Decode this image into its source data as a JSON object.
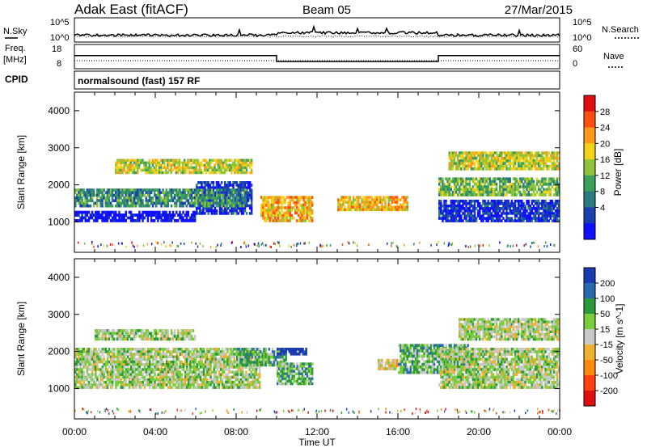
{
  "header": {
    "station": "Adak East (fitACF)",
    "beam": "Beam 05",
    "date": "27/Mar/2015"
  },
  "panels": {
    "nsky_label": "N.Sky",
    "nsearch_label": "N.Search",
    "freq_label_line1": "Freq.",
    "freq_label_line2": "[MHz]",
    "nave_label": "Nave",
    "cpid_label": "CPID",
    "cpid_value": "normalsound (fast) 157 RF",
    "noise_left_ticks": [
      "10^5",
      "10^0"
    ],
    "noise_right_ticks": [
      "10^5",
      "10^0"
    ],
    "freq_ticks": [
      "18",
      "8"
    ],
    "nave_ticks": [
      "60",
      "0"
    ]
  },
  "colorbars": {
    "power": {
      "title": "Power [dB]",
      "ticks": [
        "28",
        "24",
        "20",
        "16",
        "12",
        "8",
        "4"
      ],
      "colors": [
        "#e01010",
        "#ff5010",
        "#ff9a1a",
        "#f2d21a",
        "#8fc43a",
        "#3aa05a",
        "#2a7a80",
        "#1a40b0",
        "#1010ff"
      ]
    },
    "velocity": {
      "title": "Velocity [m s^-1]",
      "ticks": [
        "200",
        "100",
        "50",
        "15",
        "-15",
        "-50",
        "-100",
        "-200"
      ],
      "colors": [
        "#1a3ab0",
        "#2a6ab0",
        "#2a9a3a",
        "#7acc3a",
        "#c8c8c8",
        "#f0b030",
        "#ff8a10",
        "#ff4010",
        "#e01010"
      ]
    }
  },
  "chart_data": [
    {
      "type": "heatmap",
      "name": "power",
      "ylabel": "Slant Range [km]",
      "yticks": [
        "1000",
        "2000",
        "3000",
        "4000"
      ],
      "xticks": [
        "00:00",
        "04:00",
        "08:00",
        "12:00",
        "16:00",
        "20:00",
        "00:00"
      ],
      "ylim": [
        180,
        4500
      ],
      "xlim_hours": [
        0,
        24
      ],
      "echo_bands": [
        {
          "t0": 0.0,
          "t1": 6.0,
          "r0": 1000,
          "r1": 1300,
          "level": 0
        },
        {
          "t0": 6.0,
          "t1": 8.8,
          "r0": 1200,
          "r1": 2100,
          "level": 1
        },
        {
          "t0": 0.0,
          "t1": 8.5,
          "r0": 1400,
          "r1": 1900,
          "level": 3
        },
        {
          "t0": 2.0,
          "t1": 8.8,
          "r0": 2300,
          "r1": 2700,
          "level": 5
        },
        {
          "t0": 9.2,
          "t1": 11.8,
          "r0": 1000,
          "r1": 1700,
          "level": 6
        },
        {
          "t0": 13.0,
          "t1": 16.5,
          "r0": 1300,
          "r1": 1700,
          "level": 6
        },
        {
          "t0": 18.0,
          "t1": 24.0,
          "r0": 1000,
          "r1": 1600,
          "level": 1
        },
        {
          "t0": 18.0,
          "t1": 24.0,
          "r0": 1700,
          "r1": 2200,
          "level": 4
        },
        {
          "t0": 18.5,
          "t1": 24.0,
          "r0": 2400,
          "r1": 2900,
          "level": 5
        }
      ]
    },
    {
      "type": "heatmap",
      "name": "velocity",
      "xlabel": "Time UT",
      "ylabel": "Slant Range [km]",
      "yticks": [
        "1000",
        "2000",
        "3000",
        "4000"
      ],
      "xticks": [
        "00:00",
        "04:00",
        "08:00",
        "12:00",
        "16:00",
        "20:00",
        "00:00"
      ],
      "ylim": [
        180,
        4500
      ],
      "xlim_hours": [
        0,
        24
      ],
      "echo_bands": [
        {
          "t0": 0.0,
          "t1": 9.2,
          "r0": 1000,
          "r1": 2100,
          "level": 4
        },
        {
          "t0": 1.0,
          "t1": 6.0,
          "r0": 2300,
          "r1": 2600,
          "level": 4
        },
        {
          "t0": 8.0,
          "t1": 10.5,
          "r0": 1600,
          "r1": 2100,
          "level": 3
        },
        {
          "t0": 10.0,
          "t1": 11.5,
          "r0": 1900,
          "r1": 2100,
          "level": 0
        },
        {
          "t0": 10.0,
          "t1": 11.8,
          "r0": 1100,
          "r1": 1700,
          "level": 3
        },
        {
          "t0": 15.0,
          "t1": 16.0,
          "r0": 1500,
          "r1": 1800,
          "level": 5
        },
        {
          "t0": 16.0,
          "t1": 19.5,
          "r0": 1400,
          "r1": 2200,
          "level": 3
        },
        {
          "t0": 18.0,
          "t1": 24.0,
          "r0": 1000,
          "r1": 2100,
          "level": 4
        },
        {
          "t0": 19.0,
          "t1": 24.0,
          "r0": 2300,
          "r1": 2900,
          "level": 4
        }
      ]
    }
  ],
  "series_levels": {
    "freq_mhz": [
      {
        "t0": 0.0,
        "t1": 10.0,
        "v": 13.5
      },
      {
        "t0": 10.0,
        "t1": 18.0,
        "v": 10.5
      },
      {
        "t0": 18.0,
        "t1": 24.0,
        "v": 13.5
      }
    ]
  }
}
